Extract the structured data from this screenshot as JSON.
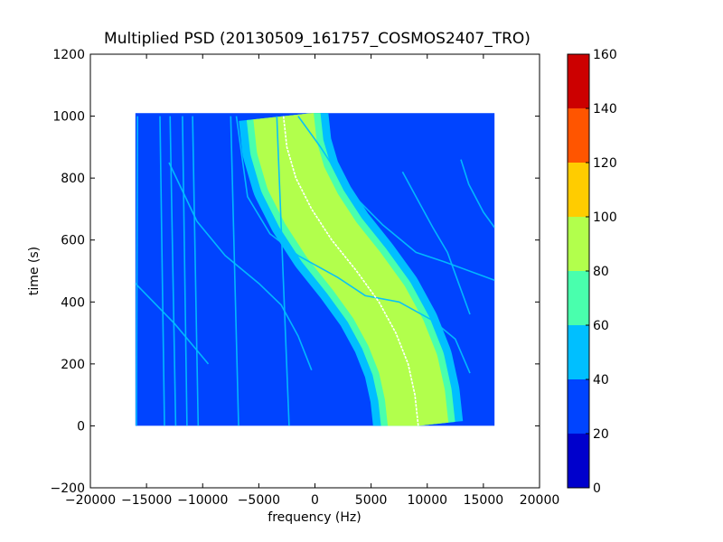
{
  "chart_data": {
    "type": "heatmap",
    "title": "Multiplied PSD (20130509_161757_COSMOS2407_TRO)",
    "xlabel": "frequency (Hz)",
    "ylabel": "time (s)",
    "xlim": [
      -20000,
      20000
    ],
    "ylim": [
      -200,
      1200
    ],
    "x_ticks": [
      -20000,
      -15000,
      -10000,
      -5000,
      0,
      5000,
      10000,
      15000,
      20000
    ],
    "x_tick_labels": [
      "−20000",
      "−15000",
      "−10000",
      "−5000",
      "0",
      "5000",
      "10000",
      "15000",
      "20000"
    ],
    "y_ticks": [
      -200,
      0,
      200,
      400,
      600,
      800,
      1000,
      1200
    ],
    "y_tick_labels": [
      "−200",
      "0",
      "200",
      "400",
      "600",
      "800",
      "1000",
      "1200"
    ],
    "data_extent": {
      "x": [
        -16000,
        16000
      ],
      "y": [
        0,
        1010
      ]
    },
    "background_level": [
      20,
      40
    ],
    "colorbar": {
      "ticks": [
        0,
        20,
        40,
        60,
        80,
        100,
        120,
        140,
        160
      ],
      "tick_labels": [
        "0",
        "20",
        "40",
        "60",
        "80",
        "100",
        "120",
        "140",
        "160"
      ],
      "bands": [
        {
          "range": [
            0,
            20
          ],
          "color": "#0000cc"
        },
        {
          "range": [
            20,
            40
          ],
          "color": "#0044ff"
        },
        {
          "range": [
            40,
            60
          ],
          "color": "#00bfff"
        },
        {
          "range": [
            60,
            80
          ],
          "color": "#49ffad"
        },
        {
          "range": [
            80,
            100
          ],
          "color": "#b2ff4c"
        },
        {
          "range": [
            100,
            120
          ],
          "color": "#ffcc00"
        },
        {
          "range": [
            120,
            140
          ],
          "color": "#ff5500"
        },
        {
          "range": [
            140,
            160
          ],
          "color": "#cc0000"
        }
      ]
    },
    "main_signal": {
      "description_level": "S-shaped Doppler curve",
      "center_curve": [
        [
          -2800,
          1000
        ],
        [
          -2500,
          900
        ],
        [
          -1700,
          800
        ],
        [
          -300,
          700
        ],
        [
          1500,
          600
        ],
        [
          3700,
          500
        ],
        [
          5700,
          400
        ],
        [
          7200,
          300
        ],
        [
          8300,
          200
        ],
        [
          8900,
          100
        ],
        [
          9200,
          0
        ]
      ],
      "core_level": [
        80,
        100
      ],
      "halo_levels": [
        [
          60,
          80
        ],
        [
          40,
          60
        ]
      ],
      "core_halfwidth_hz": 2700,
      "halo1_halfwidth_hz": 3300,
      "halo2_halfwidth_hz": 4000,
      "centerline_color": "#ffffff"
    },
    "weak_traces": [
      {
        "points": [
          [
            -13000,
            850
          ],
          [
            -10500,
            660
          ],
          [
            -8000,
            550
          ],
          [
            -5000,
            460
          ],
          [
            -3000,
            390
          ],
          [
            -1500,
            290
          ],
          [
            -300,
            180
          ]
        ],
        "level": [
          40,
          60
        ]
      },
      {
        "points": [
          [
            -16000,
            460
          ],
          [
            -12500,
            330
          ],
          [
            -9500,
            200
          ]
        ],
        "level": [
          40,
          60
        ]
      },
      {
        "points": [
          [
            -7000,
            1000
          ],
          [
            -6000,
            740
          ],
          [
            -4000,
            620
          ],
          [
            -1500,
            550
          ],
          [
            2000,
            480
          ],
          [
            4500,
            420
          ],
          [
            7500,
            400
          ],
          [
            10500,
            340
          ],
          [
            12500,
            280
          ],
          [
            13800,
            170
          ]
        ],
        "level": [
          40,
          60
        ]
      },
      {
        "points": [
          [
            7800,
            820
          ],
          [
            9000,
            740
          ],
          [
            10500,
            640
          ],
          [
            11800,
            560
          ],
          [
            12800,
            460
          ],
          [
            13800,
            360
          ]
        ],
        "level": [
          40,
          60
        ]
      },
      {
        "points": [
          [
            13000,
            860
          ],
          [
            13700,
            780
          ],
          [
            15000,
            690
          ],
          [
            16000,
            640
          ]
        ],
        "level": [
          40,
          60
        ]
      },
      {
        "points": [
          [
            -1500,
            1000
          ],
          [
            500,
            900
          ],
          [
            3000,
            760
          ],
          [
            6000,
            650
          ],
          [
            9000,
            560
          ],
          [
            11500,
            530
          ],
          [
            16000,
            470
          ]
        ],
        "level": [
          40,
          60
        ]
      },
      {
        "points": [
          [
            -15800,
            1000
          ],
          [
            -15900,
            0
          ]
        ],
        "level": [
          40,
          60
        ]
      },
      {
        "points": [
          [
            -13800,
            1000
          ],
          [
            -13400,
            0
          ]
        ],
        "level": [
          40,
          60
        ]
      },
      {
        "points": [
          [
            -12900,
            1000
          ],
          [
            -12400,
            0
          ]
        ],
        "level": [
          40,
          60
        ]
      },
      {
        "points": [
          [
            -11800,
            1000
          ],
          [
            -11400,
            0
          ]
        ],
        "level": [
          40,
          60
        ]
      },
      {
        "points": [
          [
            -10900,
            1000
          ],
          [
            -10400,
            0
          ]
        ],
        "level": [
          40,
          60
        ]
      },
      {
        "points": [
          [
            -7500,
            1000
          ],
          [
            -6800,
            0
          ]
        ],
        "level": [
          40,
          60
        ]
      },
      {
        "points": [
          [
            -3400,
            1000
          ],
          [
            -2300,
            0
          ]
        ],
        "level": [
          40,
          60
        ]
      }
    ]
  }
}
